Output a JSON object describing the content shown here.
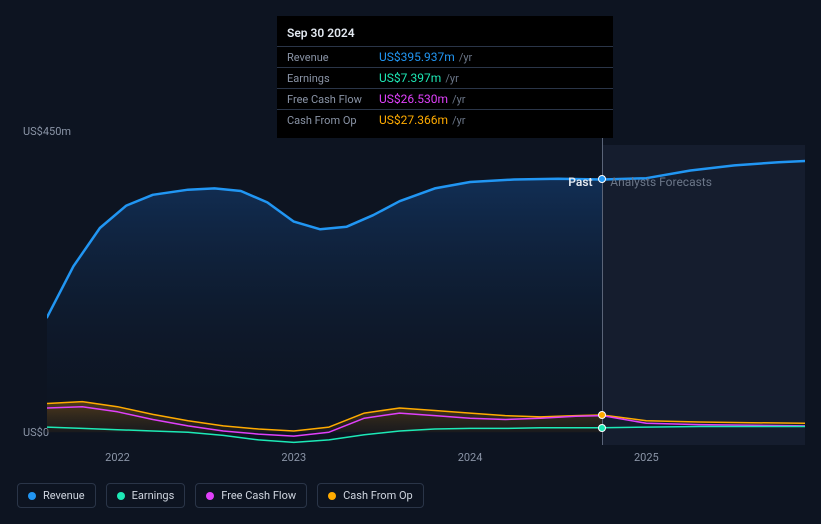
{
  "tooltip": {
    "date": "Sep 30 2024",
    "rows": [
      {
        "label": "Revenue",
        "value": "US$395.937m",
        "unit": "/yr",
        "color": "#2196f3"
      },
      {
        "label": "Earnings",
        "value": "US$7.397m",
        "unit": "/yr",
        "color": "#1de9b6"
      },
      {
        "label": "Free Cash Flow",
        "value": "US$26.530m",
        "unit": "/yr",
        "color": "#e040fb"
      },
      {
        "label": "Cash From Op",
        "value": "US$27.366m",
        "unit": "/yr",
        "color": "#ffab00"
      }
    ]
  },
  "legend": [
    {
      "name": "Revenue",
      "color": "#2196f3"
    },
    {
      "name": "Earnings",
      "color": "#1de9b6"
    },
    {
      "name": "Free Cash Flow",
      "color": "#e040fb"
    },
    {
      "name": "Cash From Op",
      "color": "#ffab00"
    }
  ],
  "yaxis": {
    "max_label": "US$450m",
    "zero_label": "US$0",
    "min": -20,
    "max": 450
  },
  "xaxis": {
    "min": 2021.6,
    "max": 2025.9,
    "ticks": [
      {
        "v": 2022,
        "label": "2022"
      },
      {
        "v": 2023,
        "label": "2023"
      },
      {
        "v": 2024,
        "label": "2024"
      },
      {
        "v": 2025,
        "label": "2025"
      }
    ]
  },
  "regions": {
    "split_x": 2024.75,
    "past_label": "Past",
    "forecast_label": "Analysts Forecasts"
  },
  "hover_x": 2024.75,
  "series": {
    "revenue": {
      "color": "#2196f3",
      "width": 2.5,
      "fill_past": true,
      "pts": [
        [
          2021.6,
          180
        ],
        [
          2021.75,
          260
        ],
        [
          2021.9,
          320
        ],
        [
          2022.05,
          355
        ],
        [
          2022.2,
          372
        ],
        [
          2022.4,
          380
        ],
        [
          2022.55,
          382
        ],
        [
          2022.7,
          378
        ],
        [
          2022.85,
          360
        ],
        [
          2023.0,
          330
        ],
        [
          2023.15,
          318
        ],
        [
          2023.3,
          322
        ],
        [
          2023.45,
          340
        ],
        [
          2023.6,
          362
        ],
        [
          2023.8,
          382
        ],
        [
          2024.0,
          392
        ],
        [
          2024.25,
          396
        ],
        [
          2024.5,
          397
        ],
        [
          2024.75,
          396
        ],
        [
          2025.0,
          398
        ],
        [
          2025.25,
          410
        ],
        [
          2025.5,
          418
        ],
        [
          2025.75,
          423
        ],
        [
          2025.9,
          425
        ]
      ]
    },
    "cashfromop": {
      "color": "#ffab00",
      "width": 1.5,
      "fill_past": true,
      "pts": [
        [
          2021.6,
          45
        ],
        [
          2021.8,
          48
        ],
        [
          2022.0,
          40
        ],
        [
          2022.2,
          28
        ],
        [
          2022.4,
          18
        ],
        [
          2022.6,
          10
        ],
        [
          2022.8,
          5
        ],
        [
          2023.0,
          2
        ],
        [
          2023.2,
          8
        ],
        [
          2023.4,
          30
        ],
        [
          2023.6,
          38
        ],
        [
          2023.8,
          34
        ],
        [
          2024.0,
          30
        ],
        [
          2024.2,
          26
        ],
        [
          2024.4,
          24
        ],
        [
          2024.6,
          26
        ],
        [
          2024.75,
          27
        ],
        [
          2025.0,
          18
        ],
        [
          2025.3,
          16
        ],
        [
          2025.6,
          15
        ],
        [
          2025.9,
          14
        ]
      ]
    },
    "freecashflow": {
      "color": "#e040fb",
      "width": 1.5,
      "fill_past": false,
      "pts": [
        [
          2021.6,
          38
        ],
        [
          2021.8,
          40
        ],
        [
          2022.0,
          32
        ],
        [
          2022.2,
          20
        ],
        [
          2022.4,
          10
        ],
        [
          2022.6,
          2
        ],
        [
          2022.8,
          -3
        ],
        [
          2023.0,
          -6
        ],
        [
          2023.2,
          0
        ],
        [
          2023.4,
          22
        ],
        [
          2023.6,
          30
        ],
        [
          2023.8,
          26
        ],
        [
          2024.0,
          22
        ],
        [
          2024.2,
          20
        ],
        [
          2024.4,
          22
        ],
        [
          2024.6,
          25
        ],
        [
          2024.75,
          26
        ],
        [
          2025.0,
          14
        ],
        [
          2025.3,
          12
        ],
        [
          2025.6,
          11
        ],
        [
          2025.9,
          10
        ]
      ]
    },
    "earnings": {
      "color": "#1de9b6",
      "width": 1.5,
      "fill_past": false,
      "pts": [
        [
          2021.6,
          8
        ],
        [
          2021.8,
          6
        ],
        [
          2022.0,
          4
        ],
        [
          2022.2,
          2
        ],
        [
          2022.4,
          0
        ],
        [
          2022.6,
          -5
        ],
        [
          2022.8,
          -12
        ],
        [
          2023.0,
          -16
        ],
        [
          2023.2,
          -12
        ],
        [
          2023.4,
          -4
        ],
        [
          2023.6,
          2
        ],
        [
          2023.8,
          5
        ],
        [
          2024.0,
          6
        ],
        [
          2024.2,
          6
        ],
        [
          2024.4,
          7
        ],
        [
          2024.6,
          7
        ],
        [
          2024.75,
          7
        ],
        [
          2025.0,
          8
        ],
        [
          2025.3,
          9
        ],
        [
          2025.6,
          9
        ],
        [
          2025.9,
          9
        ]
      ]
    }
  },
  "markers": [
    {
      "series": "revenue",
      "x": 2024.75,
      "y": 396,
      "color": "#2196f3"
    },
    {
      "series": "cashfromop",
      "x": 2024.75,
      "y": 27,
      "color": "#ffab00"
    },
    {
      "series": "earnings",
      "x": 2024.75,
      "y": 7,
      "color": "#1de9b6"
    }
  ],
  "colors": {
    "bg": "#0d1421",
    "past_gradient_top": "#12315a",
    "past_gradient_bottom": "#0d1421",
    "forecast_bg": "#151d2e"
  }
}
